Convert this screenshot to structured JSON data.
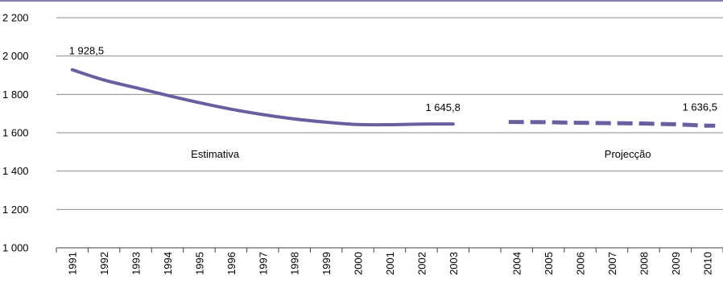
{
  "chart_data": {
    "type": "line",
    "title": "",
    "xlabel": "",
    "ylabel": "",
    "ylim": [
      1000,
      2200
    ],
    "yticks": [
      1000,
      1200,
      1400,
      1600,
      1800,
      2000,
      2200
    ],
    "ytick_labels": [
      "1 000",
      "1 200",
      "1 400",
      "1 600",
      "1 800",
      "2 000",
      "2 200"
    ],
    "grid": true,
    "legend": "none",
    "x": [
      "1991",
      "1992",
      "1993",
      "1994",
      "1995",
      "1996",
      "1997",
      "1998",
      "1999",
      "2000",
      "2001",
      "2002",
      "2003",
      "",
      "2004",
      "2005",
      "2006",
      "2007",
      "2008",
      "2009",
      "2010"
    ],
    "series": [
      {
        "style": "solid",
        "color": "#6a5f9e",
        "x": [
          "1991",
          "1992",
          "1993",
          "1994",
          "1995",
          "1996",
          "1997",
          "1998",
          "1999",
          "2000",
          "2001",
          "2002",
          "2003"
        ],
        "values": [
          1928.5,
          1875,
          1835,
          1795,
          1757,
          1723,
          1695,
          1672,
          1655,
          1643,
          1642,
          1645,
          1645.8
        ]
      },
      {
        "style": "dashed",
        "color": "#6a5f9e",
        "x": [
          "2004",
          "2005",
          "2006",
          "2007",
          "2008",
          "2009",
          "2010"
        ],
        "values": [
          1656,
          1655,
          1652,
          1650,
          1648,
          1644,
          1636.5
        ]
      }
    ],
    "annotations": [
      {
        "text": "1 928,5",
        "x": "1991",
        "y": 1928.5
      },
      {
        "text": "1 645,8",
        "x": "2003",
        "y": 1645.8
      },
      {
        "text": "1 636,5",
        "x": "2010",
        "y": 1636.5
      },
      {
        "text": "Estimativa",
        "x": "1995",
        "y": 1490
      },
      {
        "text": "Projecção",
        "x": "2007",
        "y": 1490
      }
    ]
  }
}
